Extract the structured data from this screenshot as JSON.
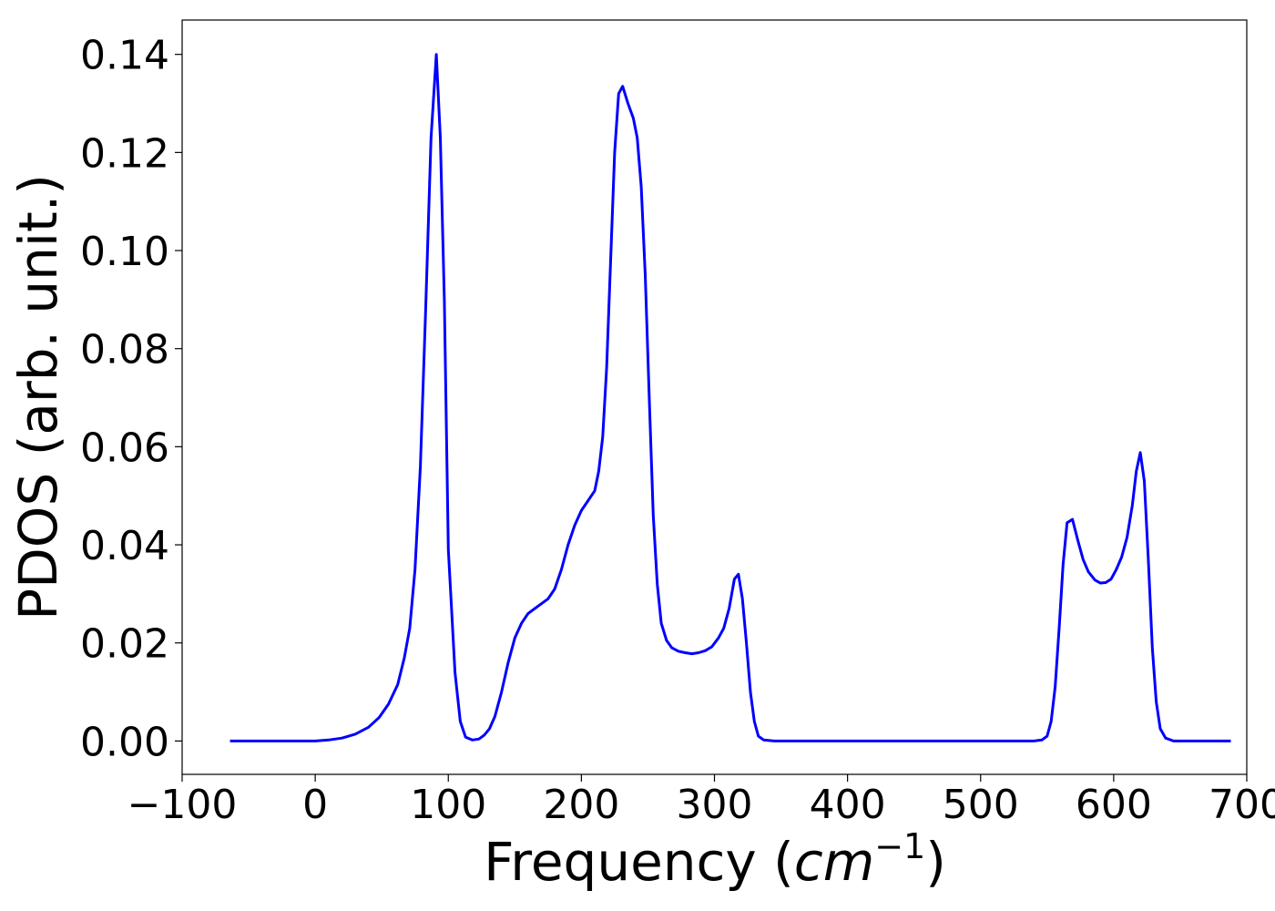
{
  "chart_data": {
    "type": "line",
    "title": "",
    "xlabel_text": "Frequency (",
    "xlabel_unit_base": "cm",
    "xlabel_unit_exp": "−1",
    "xlabel_close": ")",
    "ylabel": "PDOS (arb. unit.)",
    "xlim": [
      -100,
      700
    ],
    "ylim": [
      -0.0068,
      0.147
    ],
    "x_ticks": [
      -100,
      0,
      100,
      200,
      300,
      400,
      500,
      600,
      700
    ],
    "x_tick_labels": [
      "−100",
      "0",
      "100",
      "200",
      "300",
      "400",
      "500",
      "600",
      "700"
    ],
    "y_ticks": [
      0.0,
      0.02,
      0.04,
      0.06,
      0.08,
      0.1,
      0.12,
      0.14
    ],
    "y_tick_labels": [
      "0.00",
      "0.02",
      "0.04",
      "0.06",
      "0.08",
      "0.10",
      "0.12",
      "0.14"
    ],
    "grid": false,
    "series": [
      {
        "color": "#0000ff",
        "points": [
          [
            -64,
            0.0
          ],
          [
            -40,
            0.0
          ],
          [
            -20,
            0.0
          ],
          [
            0,
            0.0
          ],
          [
            10,
            0.0002
          ],
          [
            20,
            0.0006
          ],
          [
            30,
            0.0014
          ],
          [
            40,
            0.0028
          ],
          [
            48,
            0.0048
          ],
          [
            55,
            0.0075
          ],
          [
            62,
            0.0115
          ],
          [
            67,
            0.017
          ],
          [
            71,
            0.023
          ],
          [
            75,
            0.035
          ],
          [
            79,
            0.056
          ],
          [
            83,
            0.088
          ],
          [
            87,
            0.123
          ],
          [
            91,
            0.14
          ],
          [
            94,
            0.123
          ],
          [
            97,
            0.09
          ],
          [
            100,
            0.039
          ],
          [
            105,
            0.014
          ],
          [
            109,
            0.004
          ],
          [
            113,
            0.0008
          ],
          [
            118,
            0.0002
          ],
          [
            123,
            0.0004
          ],
          [
            127,
            0.0012
          ],
          [
            131,
            0.0025
          ],
          [
            135,
            0.005
          ],
          [
            140,
            0.01
          ],
          [
            145,
            0.016
          ],
          [
            150,
            0.021
          ],
          [
            155,
            0.024
          ],
          [
            160,
            0.026
          ],
          [
            165,
            0.027
          ],
          [
            170,
            0.028
          ],
          [
            175,
            0.029
          ],
          [
            180,
            0.031
          ],
          [
            185,
            0.035
          ],
          [
            190,
            0.04
          ],
          [
            195,
            0.044
          ],
          [
            200,
            0.047
          ],
          [
            205,
            0.049
          ],
          [
            210,
            0.051
          ],
          [
            213,
            0.055
          ],
          [
            216,
            0.062
          ],
          [
            219,
            0.076
          ],
          [
            222,
            0.098
          ],
          [
            225,
            0.12
          ],
          [
            228,
            0.132
          ],
          [
            231,
            0.1335
          ],
          [
            235,
            0.13
          ],
          [
            239,
            0.127
          ],
          [
            242,
            0.123
          ],
          [
            245,
            0.113
          ],
          [
            248,
            0.095
          ],
          [
            251,
            0.07
          ],
          [
            254,
            0.046
          ],
          [
            257,
            0.032
          ],
          [
            260,
            0.024
          ],
          [
            264,
            0.0205
          ],
          [
            268,
            0.019
          ],
          [
            273,
            0.0183
          ],
          [
            278,
            0.018
          ],
          [
            283,
            0.0178
          ],
          [
            288,
            0.018
          ],
          [
            293,
            0.0184
          ],
          [
            298,
            0.0192
          ],
          [
            303,
            0.021
          ],
          [
            307,
            0.023
          ],
          [
            311,
            0.027
          ],
          [
            315,
            0.033
          ],
          [
            318,
            0.034
          ],
          [
            321,
            0.029
          ],
          [
            324,
            0.02
          ],
          [
            327,
            0.01
          ],
          [
            330,
            0.004
          ],
          [
            333,
            0.001
          ],
          [
            337,
            0.0002
          ],
          [
            345,
            0.0
          ],
          [
            400,
            0.0
          ],
          [
            450,
            0.0
          ],
          [
            500,
            0.0
          ],
          [
            540,
            0.0
          ],
          [
            546,
            0.0002
          ],
          [
            550,
            0.001
          ],
          [
            553,
            0.004
          ],
          [
            556,
            0.011
          ],
          [
            559,
            0.023
          ],
          [
            562,
            0.036
          ],
          [
            565,
            0.0445
          ],
          [
            569,
            0.0452
          ],
          [
            573,
            0.041
          ],
          [
            577,
            0.037
          ],
          [
            581,
            0.0345
          ],
          [
            586,
            0.0328
          ],
          [
            590,
            0.0322
          ],
          [
            594,
            0.0323
          ],
          [
            598,
            0.033
          ],
          [
            602,
            0.035
          ],
          [
            606,
            0.0375
          ],
          [
            610,
            0.0415
          ],
          [
            614,
            0.048
          ],
          [
            617,
            0.055
          ],
          [
            620,
            0.0588
          ],
          [
            623,
            0.053
          ],
          [
            626,
            0.037
          ],
          [
            629,
            0.019
          ],
          [
            632,
            0.008
          ],
          [
            635,
            0.0025
          ],
          [
            639,
            0.0006
          ],
          [
            645,
            0.0
          ],
          [
            660,
            0.0
          ],
          [
            688,
            0.0
          ]
        ]
      }
    ]
  }
}
